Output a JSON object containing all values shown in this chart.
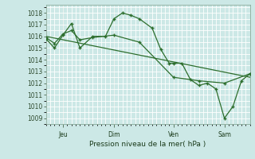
{
  "background_color": "#cce8e6",
  "grid_color": "#ffffff",
  "line_color": "#2d6e2d",
  "title": "Pression niveau de la mer( hPa )",
  "ylim": [
    1008.5,
    1018.7
  ],
  "yticks": [
    1009,
    1010,
    1011,
    1012,
    1013,
    1014,
    1015,
    1016,
    1017,
    1018
  ],
  "xmin": 0,
  "xmax": 96,
  "xtick_positions": [
    8,
    32,
    60,
    84
  ],
  "xtick_labels": [
    "Jeu",
    "Dim",
    "Ven",
    "Sam"
  ],
  "vline_positions": [
    8,
    32,
    60,
    84
  ],
  "series1_x": [
    0,
    4,
    8,
    12,
    16,
    22,
    28,
    32,
    36,
    40,
    44,
    50,
    54,
    58,
    60,
    64,
    68,
    72,
    76,
    80,
    84,
    88,
    92,
    96
  ],
  "series1_y": [
    1015.8,
    1015.0,
    1016.1,
    1017.1,
    1015.0,
    1016.0,
    1016.0,
    1017.5,
    1018.0,
    1017.8,
    1017.5,
    1016.7,
    1014.9,
    1013.7,
    1013.7,
    1013.7,
    1012.3,
    1011.8,
    1012.0,
    1011.5,
    1009.0,
    1010.0,
    1012.2,
    1012.8
  ],
  "series2_x": [
    0,
    4,
    8,
    12,
    16,
    22,
    32,
    44,
    60,
    72,
    84,
    96
  ],
  "series2_y": [
    1015.9,
    1015.4,
    1016.2,
    1016.5,
    1015.7,
    1015.9,
    1016.1,
    1015.5,
    1012.5,
    1012.2,
    1012.0,
    1012.8
  ],
  "trend_x": [
    0,
    96
  ],
  "trend_y": [
    1016.0,
    1012.5
  ]
}
